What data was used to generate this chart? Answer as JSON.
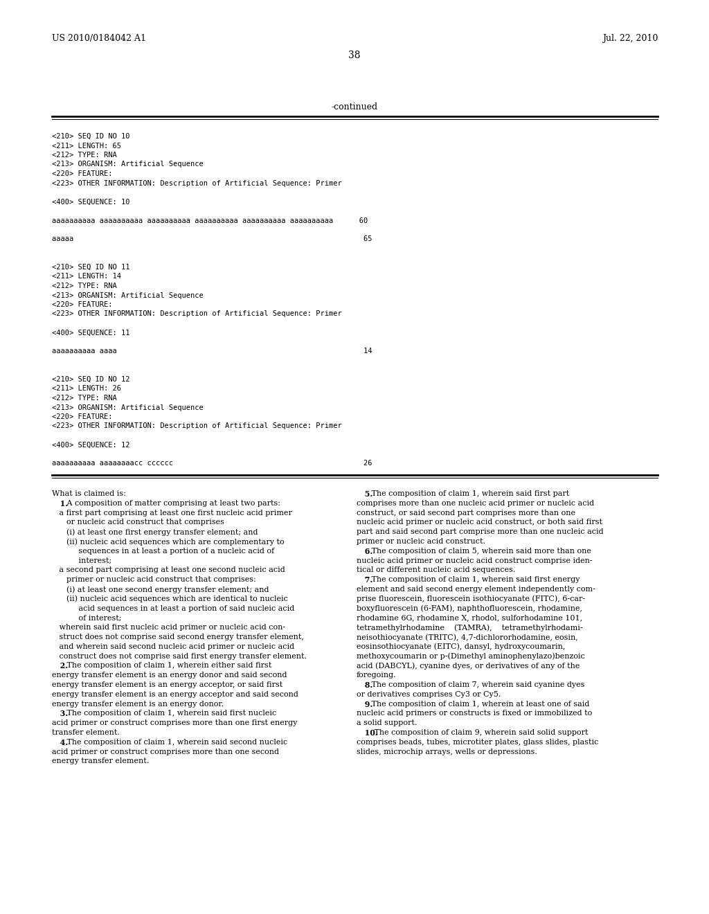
{
  "background_color": "#ffffff",
  "page_number": "38",
  "header_left": "US 2010/0184042 A1",
  "header_right": "Jul. 22, 2010",
  "continued_label": "-continued",
  "monospace_lines_top": [
    "<210> SEQ ID NO 10",
    "<211> LENGTH: 65",
    "<212> TYPE: RNA",
    "<213> ORGANISM: Artificial Sequence",
    "<220> FEATURE:",
    "<223> OTHER INFORMATION: Description of Artificial Sequence: Primer",
    "",
    "<400> SEQUENCE: 10",
    "",
    "aaaaaaaaaa aaaaaaaaaa aaaaaaaaaa aaaaaaaaaa aaaaaaaaaa aaaaaaaaaa      60",
    "",
    "aaaaa                                                                   65",
    "",
    "",
    "<210> SEQ ID NO 11",
    "<211> LENGTH: 14",
    "<212> TYPE: RNA",
    "<213> ORGANISM: Artificial Sequence",
    "<220> FEATURE:",
    "<223> OTHER INFORMATION: Description of Artificial Sequence: Primer",
    "",
    "<400> SEQUENCE: 11",
    "",
    "aaaaaaaaaa aaaa                                                         14",
    "",
    "",
    "<210> SEQ ID NO 12",
    "<211> LENGTH: 26",
    "<212> TYPE: RNA",
    "<213> ORGANISM: Artificial Sequence",
    "<220> FEATURE:",
    "<223> OTHER INFORMATION: Description of Artificial Sequence: Primer",
    "",
    "<400> SEQUENCE: 12",
    "",
    "aaaaaaaaaa aaaaaaaacc cccccc                                            26"
  ],
  "claims_left": [
    "What is claimed is:",
    "   ±1. A composition of matter comprising at least two parts:",
    "   a first part comprising at least one first nucleic acid primer",
    "      or nucleic acid construct that comprises",
    "      (i) at least one first energy transfer element; and",
    "      (ii) nucleic acid sequences which are complementary to",
    "           sequences in at least a portion of a nucleic acid of",
    "           interest;",
    "   a second part comprising at least one second nucleic acid",
    "      primer or nucleic acid construct that comprises:",
    "      (i) at least one second energy transfer element; and",
    "      (ii) nucleic acid sequences which are identical to nucleic",
    "           acid sequences in at least a portion of said nucleic acid",
    "           of interest;",
    "   wherein said first nucleic acid primer or nucleic acid con-",
    "   struct does not comprise said second energy transfer element,",
    "   and wherein said second nucleic acid primer or nucleic acid",
    "   construct does not comprise said first energy transfer element.",
    "   ±2. The composition of claim 1, wherein either said first",
    "energy transfer element is an energy donor and said second",
    "energy transfer element is an energy acceptor, or said first",
    "energy transfer element is an energy acceptor and said second",
    "energy transfer element is an energy donor.",
    "   ±3. The composition of claim 1, wherein said first nucleic",
    "acid primer or construct comprises more than one first energy",
    "transfer element.",
    "   ±4. The composition of claim 1, wherein said second nucleic",
    "acid primer or construct comprises more than one second",
    "energy transfer element."
  ],
  "claims_left_bold": [
    false,
    true,
    false,
    false,
    false,
    false,
    false,
    false,
    false,
    false,
    false,
    false,
    false,
    false,
    false,
    false,
    false,
    false,
    true,
    false,
    false,
    false,
    false,
    true,
    false,
    false,
    true,
    false,
    false
  ],
  "claims_right": [
    "   ±5. The composition of claim 1, wherein said first part",
    "comprises more than one nucleic acid primer or nucleic acid",
    "construct, or said second part comprises more than one",
    "nucleic acid primer or nucleic acid construct, or both said first",
    "part and said second part comprise more than one nucleic acid",
    "primer or nucleic acid construct.",
    "   ±6. The composition of claim 5, wherein said more than one",
    "nucleic acid primer or nucleic acid construct comprise iden-",
    "tical or different nucleic acid sequences.",
    "   ±7. The composition of claim 1, wherein said first energy",
    "element and said second energy element independently com-",
    "prise fluorescein, fluorescein isothiocyanate (FITC), 6-car-",
    "boxyfluorescein (6-FAM), naphthofluorescein, rhodamine,",
    "rhodamine 6G, rhodamine X, rhodol, sulforhodamine 101,",
    "tetramethylrhodamine    (TAMRA),    tetramethylrhodami-",
    "neisothiocyanate (TRITC), 4,7-dichlororhodamine, eosin,",
    "eosinsothiocyanate (EITC), dansyl, hydroxycoumarin,",
    "methoxycoumarin or p-(Dimethyl aminophenylazo)benzoic",
    "acid (DABCYL), cyanine dyes, or derivatives of any of the",
    "foregoing.",
    "   ±8. The composition of claim 7, wherein said cyanine dyes",
    "or derivatives comprises Cy3 or Cy5.",
    "   ±9. The composition of claim 1, wherein at least one of said",
    "nucleic acid primers or constructs is fixed or immobilized to",
    "a solid support.",
    "   ±10. The composition of claim 9, wherein said solid support",
    "comprises beads, tubes, microtiter plates, glass slides, plastic",
    "slides, microchip arrays, wells or depressions."
  ],
  "claims_right_bold": [
    true,
    false,
    false,
    false,
    false,
    false,
    true,
    false,
    false,
    true,
    false,
    false,
    false,
    false,
    false,
    false,
    false,
    false,
    false,
    false,
    true,
    false,
    true,
    false,
    false,
    true,
    false,
    false
  ]
}
